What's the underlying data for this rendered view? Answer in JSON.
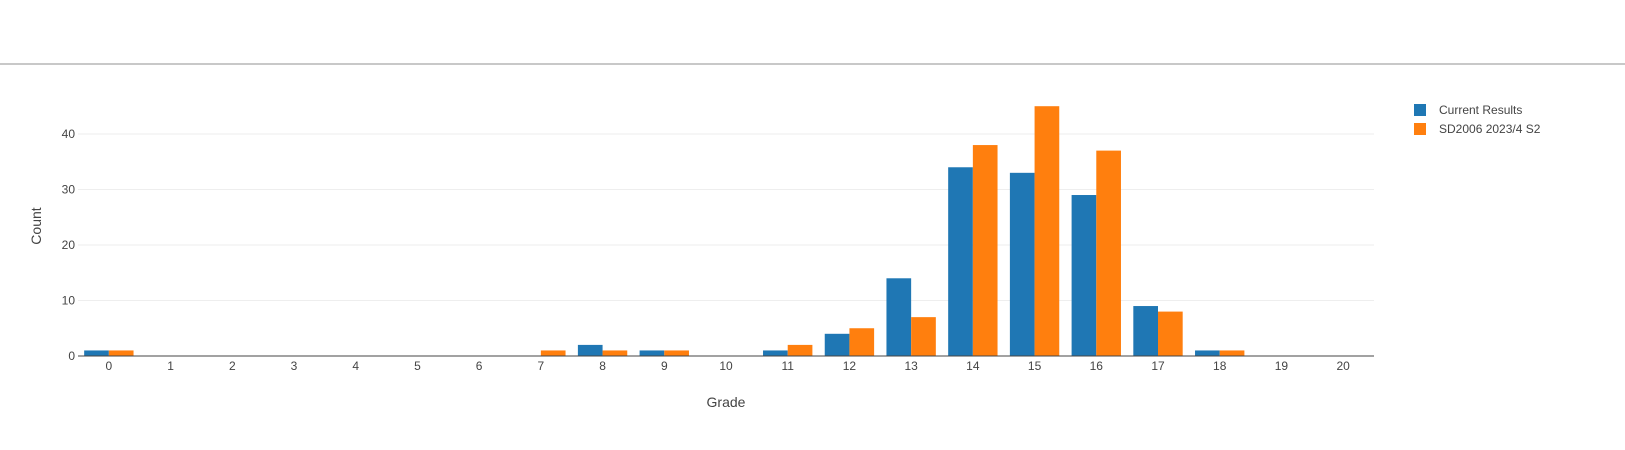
{
  "chart_data": {
    "type": "bar",
    "xlabel": "Grade",
    "ylabel": "Count",
    "categories": [
      "0",
      "1",
      "2",
      "3",
      "4",
      "5",
      "6",
      "7",
      "8",
      "9",
      "10",
      "11",
      "12",
      "13",
      "14",
      "15",
      "16",
      "17",
      "18",
      "19",
      "20"
    ],
    "ylim": [
      0,
      49
    ],
    "yticks": [
      0,
      10,
      20,
      30,
      40
    ],
    "grid": true,
    "legend_position": "top-right",
    "series": [
      {
        "name": "Current Results",
        "color": "#1f77b4",
        "values": [
          1,
          0,
          0,
          0,
          0,
          0,
          0,
          0,
          2,
          1,
          0,
          1,
          4,
          14,
          34,
          33,
          29,
          9,
          1,
          0,
          0
        ]
      },
      {
        "name": "SD2006 2023/4 S2",
        "color": "#ff7f0e",
        "values": [
          1,
          0,
          0,
          0,
          0,
          0,
          0,
          1,
          1,
          1,
          0,
          2,
          5,
          7,
          38,
          45,
          37,
          8,
          1,
          0,
          0
        ]
      }
    ]
  }
}
